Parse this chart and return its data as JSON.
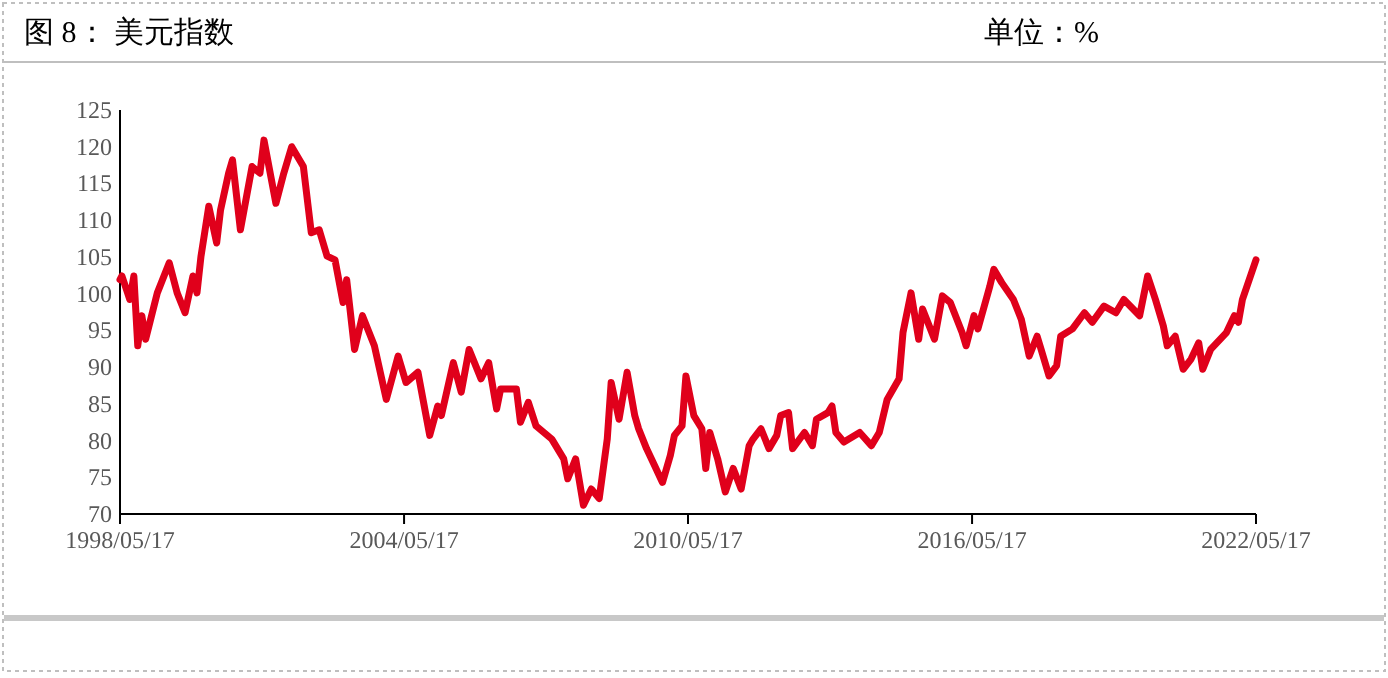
{
  "chart_data": {
    "type": "line",
    "title": "图 8：  美元指数",
    "subtitle": "单位：%",
    "xlim": [
      "1998-05-17",
      "2022-05-17"
    ],
    "xticks": [
      {
        "value": "1998-05-17",
        "label": "1998/05/17"
      },
      {
        "value": "2004-05-17",
        "label": "2004/05/17"
      },
      {
        "value": "2010-05-17",
        "label": "2010/05/17"
      },
      {
        "value": "2016-05-17",
        "label": "2016/05/17"
      },
      {
        "value": "2022-05-17",
        "label": "2022/05/17"
      }
    ],
    "ylim": [
      70,
      125
    ],
    "yticks": [
      70,
      75,
      80,
      85,
      90,
      95,
      100,
      105,
      110,
      115,
      120,
      125
    ],
    "grid": false,
    "marker": "none",
    "line_style": "solid",
    "series": [
      {
        "color": "#e0001b",
        "x": [
          "1998-05-17",
          "1998-06",
          "1998-08",
          "1998-09",
          "1998-10",
          "1998-11",
          "1998-12",
          "1999-03",
          "1999-06",
          "1999-08",
          "1999-10",
          "1999-12",
          "2000-01",
          "2000-02",
          "2000-04",
          "2000-06",
          "2000-07",
          "2000-09",
          "2000-10",
          "2000-12",
          "2001-03",
          "2001-05",
          "2001-06",
          "2001-09",
          "2001-11",
          "2002-01",
          "2002-04",
          "2002-06",
          "2002-08",
          "2002-10",
          "2002-12",
          "2003-02",
          "2003-03",
          "2003-05",
          "2003-07",
          "2003-10",
          "2004-01",
          "2004-04",
          "2004-06",
          "2004-09",
          "2004-12",
          "2005-02",
          "2005-03",
          "2005-06",
          "2005-08",
          "2005-10",
          "2006-01",
          "2006-03",
          "2006-05",
          "2006-06",
          "2006-10",
          "2006-11",
          "2007-01",
          "2007-03",
          "2007-07",
          "2007-10",
          "2007-11",
          "2008-01",
          "2008-03",
          "2008-05",
          "2008-07",
          "2008-09",
          "2008-10",
          "2008-12",
          "2009-02",
          "2009-04",
          "2009-05",
          "2009-07",
          "2009-09",
          "2009-11",
          "2010-01",
          "2010-02",
          "2010-04",
          "2010-05",
          "2010-07",
          "2010-09",
          "2010-10",
          "2010-11",
          "2011-01",
          "2011-03",
          "2011-05",
          "2011-07",
          "2011-09",
          "2011-10",
          "2011-12",
          "2012-02",
          "2012-04",
          "2012-05",
          "2012-07",
          "2012-08",
          "2012-11",
          "2013-01",
          "2013-02",
          "2013-05",
          "2013-06",
          "2013-07",
          "2013-09",
          "2014-01",
          "2014-04",
          "2014-06",
          "2014-08",
          "2014-11",
          "2014-12",
          "2015-02",
          "2015-04",
          "2015-05",
          "2015-08",
          "2015-10",
          "2015-12",
          "2016-03",
          "2016-04",
          "2016-06",
          "2016-07",
          "2016-10",
          "2016-11",
          "2017-01",
          "2017-04",
          "2017-06",
          "2017-08",
          "2017-10",
          "2017-11",
          "2018-01",
          "2018-03",
          "2018-04",
          "2018-07",
          "2018-10",
          "2018-12",
          "2019-03",
          "2019-06",
          "2019-08",
          "2019-12",
          "2020-02",
          "2020-04",
          "2020-06",
          "2020-07",
          "2020-09",
          "2020-11",
          "2021-01",
          "2021-03",
          "2021-04",
          "2021-06",
          "2021-10",
          "2021-12",
          "2022-01",
          "2022-02",
          "2022-05-17"
        ],
        "values": [
          101.9,
          102.4,
          99.2,
          102.4,
          92.9,
          97.0,
          93.8,
          100.1,
          104.2,
          100.1,
          97.4,
          102.4,
          100.1,
          105.1,
          111.9,
          106.9,
          111.4,
          116.4,
          118.2,
          108.7,
          117.3,
          116.4,
          120.9,
          112.3,
          116.4,
          120.0,
          117.3,
          108.3,
          108.7,
          105.1,
          104.6,
          98.8,
          101.9,
          92.4,
          97.0,
          92.9,
          85.6,
          91.5,
          87.9,
          89.3,
          80.7,
          84.7,
          83.4,
          90.6,
          86.6,
          92.4,
          88.4,
          90.6,
          84.3,
          87.0,
          87.0,
          82.5,
          85.2,
          82.0,
          80.2,
          77.5,
          74.8,
          77.5,
          71.2,
          73.4,
          72.1,
          80.2,
          87.9,
          82.9,
          89.3,
          83.4,
          81.6,
          78.9,
          76.6,
          74.3,
          78.0,
          80.7,
          82.0,
          88.8,
          83.4,
          81.6,
          76.2,
          81.1,
          77.5,
          73.0,
          76.2,
          73.4,
          79.3,
          80.2,
          81.6,
          78.9,
          80.7,
          83.4,
          83.8,
          78.9,
          81.1,
          79.3,
          82.9,
          83.8,
          84.7,
          81.1,
          79.8,
          81.1,
          79.3,
          81.1,
          85.6,
          88.4,
          94.7,
          100.1,
          93.8,
          97.9,
          93.8,
          99.7,
          98.8,
          94.7,
          92.9,
          97.0,
          95.2,
          101.0,
          103.3,
          101.5,
          99.2,
          96.5,
          91.5,
          94.2,
          92.4,
          88.8,
          90.2,
          94.2,
          95.2,
          97.4,
          96.1,
          98.3,
          97.4,
          99.2,
          97.0,
          102.4,
          99.2,
          95.6,
          92.9,
          94.2,
          89.7,
          91.1,
          93.3,
          89.7,
          92.4,
          94.7,
          97.0,
          96.1,
          99.2,
          104.6
        ]
      }
    ]
  }
}
